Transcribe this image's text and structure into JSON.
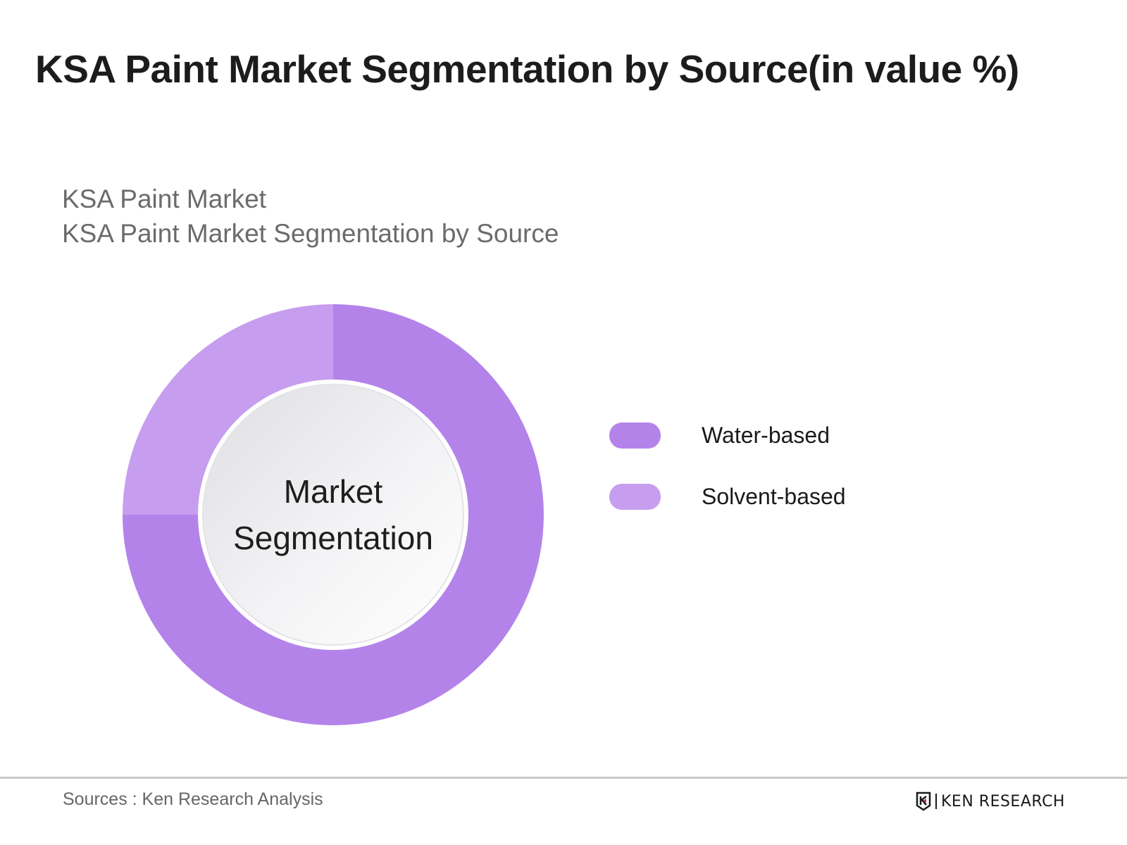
{
  "header": {
    "title": "KSA Paint Market Segmentation by Source(in value %)"
  },
  "chart": {
    "subtitle_line1": "KSA Paint Market",
    "subtitle_line2": "KSA Paint Market Segmentation by Source",
    "center_label_line1": "Market",
    "center_label_line2": "Segmentation"
  },
  "legend": {
    "items": [
      {
        "label": "Water-based",
        "color": "#b483ea"
      },
      {
        "label": "Solvent-based",
        "color": "#c79def"
      }
    ]
  },
  "footer": {
    "source": "Sources : Ken Research Analysis",
    "brand": "KEN RESEARCH"
  },
  "chart_data": {
    "type": "pie",
    "title": "KSA Paint Market Segmentation by Source(in value %)",
    "subtitle": "KSA Paint Market / KSA Paint Market Segmentation by Source",
    "categories": [
      "Water-based",
      "Solvent-based"
    ],
    "values": [
      75,
      25
    ],
    "colors": [
      "#b483ea",
      "#c79def"
    ],
    "donut": true,
    "center_label": "Market Segmentation",
    "legend_position": "right",
    "source": "Sources : Ken Research Analysis"
  }
}
